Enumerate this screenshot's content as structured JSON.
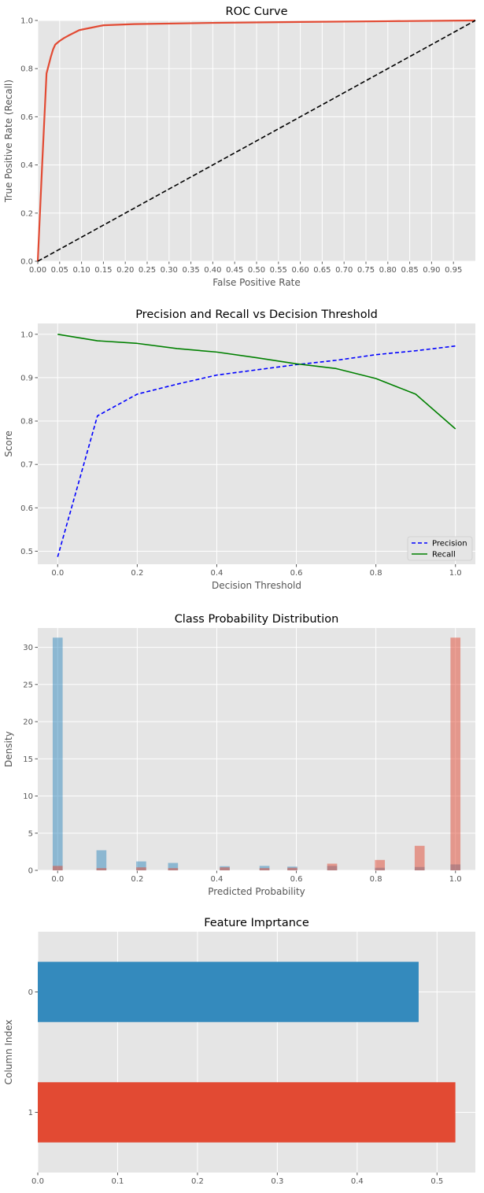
{
  "chart_data": [
    {
      "type": "line",
      "title": "ROC Curve",
      "xlabel": "False Positive Rate",
      "ylabel": "True Positive Rate (Recall)",
      "xlim": [
        0,
        1
      ],
      "ylim": [
        0,
        1
      ],
      "x_ticks": [
        "0.00",
        "0.05",
        "0.10",
        "0.15",
        "0.20",
        "0.25",
        "0.30",
        "0.35",
        "0.40",
        "0.45",
        "0.50",
        "0.55",
        "0.60",
        "0.65",
        "0.70",
        "0.75",
        "0.80",
        "0.85",
        "0.90",
        "0.95"
      ],
      "y_ticks": [
        "0.0",
        "0.2",
        "0.4",
        "0.6",
        "0.8",
        "1.0"
      ],
      "grid": true,
      "colors": {
        "roc": "#e24a33",
        "diagonal": "#000000"
      },
      "series": [
        {
          "x": [
            0,
            0.01,
            0.02,
            0.03,
            0.035,
            0.04,
            0.05,
            0.06,
            0.07,
            0.095,
            0.15,
            0.22,
            0.4,
            0.6,
            0.8,
            1.0
          ],
          "y": [
            0,
            0.4,
            0.78,
            0.85,
            0.88,
            0.9,
            0.915,
            0.927,
            0.937,
            0.96,
            0.98,
            0.985,
            0.99,
            0.994,
            0.997,
            1.0
          ]
        },
        {
          "x": [
            0,
            1
          ],
          "y": [
            0,
            1
          ],
          "style": "dashed"
        }
      ]
    },
    {
      "type": "line",
      "title": "Precision and Recall vs Decision Threshold",
      "xlabel": "Decision Threshold",
      "ylabel": "Score",
      "xlim": [
        -0.05,
        1.05
      ],
      "ylim": [
        0.47,
        1.025
      ],
      "x_ticks": [
        "0.0",
        "0.2",
        "0.4",
        "0.6",
        "0.8",
        "1.0"
      ],
      "y_ticks": [
        "0.5",
        "0.6",
        "0.7",
        "0.8",
        "0.9",
        "1.0"
      ],
      "grid": true,
      "legend_position": "lower right",
      "x": [
        0,
        0.1,
        0.2,
        0.3,
        0.4,
        0.5,
        0.6,
        0.7,
        0.8,
        0.9,
        1.0
      ],
      "series": [
        {
          "name": "Precision",
          "color": "#0000ff",
          "style": "dashed",
          "values": [
            0.487,
            0.812,
            0.862,
            0.885,
            0.906,
            0.918,
            0.93,
            0.94,
            0.953,
            0.962,
            0.973
          ]
        },
        {
          "name": "Recall",
          "color": "#008000",
          "style": "solid",
          "values": [
            1.0,
            0.985,
            0.979,
            0.967,
            0.959,
            0.946,
            0.932,
            0.921,
            0.898,
            0.862,
            0.782
          ]
        }
      ]
    },
    {
      "type": "bar",
      "title": "Class Probability Distribution",
      "xlabel": "Predicted Probability",
      "ylabel": "Density",
      "xlim": [
        -0.05,
        1.05
      ],
      "ylim": [
        0,
        32.6
      ],
      "x_ticks": [
        "0.0",
        "0.2",
        "0.4",
        "0.6",
        "0.8",
        "1.0"
      ],
      "y_ticks": [
        "0",
        "5",
        "10",
        "15",
        "20",
        "25",
        "30"
      ],
      "grid": true,
      "x": [
        0.0,
        0.11,
        0.21,
        0.29,
        0.42,
        0.52,
        0.59,
        0.69,
        0.81,
        0.91,
        1.0
      ],
      "series": [
        {
          "color": "#348abd",
          "values": [
            31.3,
            2.7,
            1.2,
            1.0,
            0.55,
            0.6,
            0.5,
            0.6,
            0.35,
            0.45,
            0.8
          ]
        },
        {
          "color": "#e24a33",
          "values": [
            0.6,
            0.3,
            0.4,
            0.3,
            0.4,
            0.3,
            0.35,
            0.9,
            1.4,
            3.3,
            31.3
          ]
        }
      ]
    },
    {
      "type": "bar",
      "orientation": "horizontal",
      "title": "Feature Imprtance",
      "ylabel": "Column Index",
      "xlabel": "",
      "xlim": [
        0,
        0.548
      ],
      "x_ticks": [
        "0.0",
        "0.1",
        "0.2",
        "0.3",
        "0.4",
        "0.5"
      ],
      "categories": [
        "0",
        "1"
      ],
      "values": [
        0.477,
        0.523
      ],
      "colors": [
        "#348abd",
        "#e24a33"
      ],
      "grid": true
    }
  ]
}
